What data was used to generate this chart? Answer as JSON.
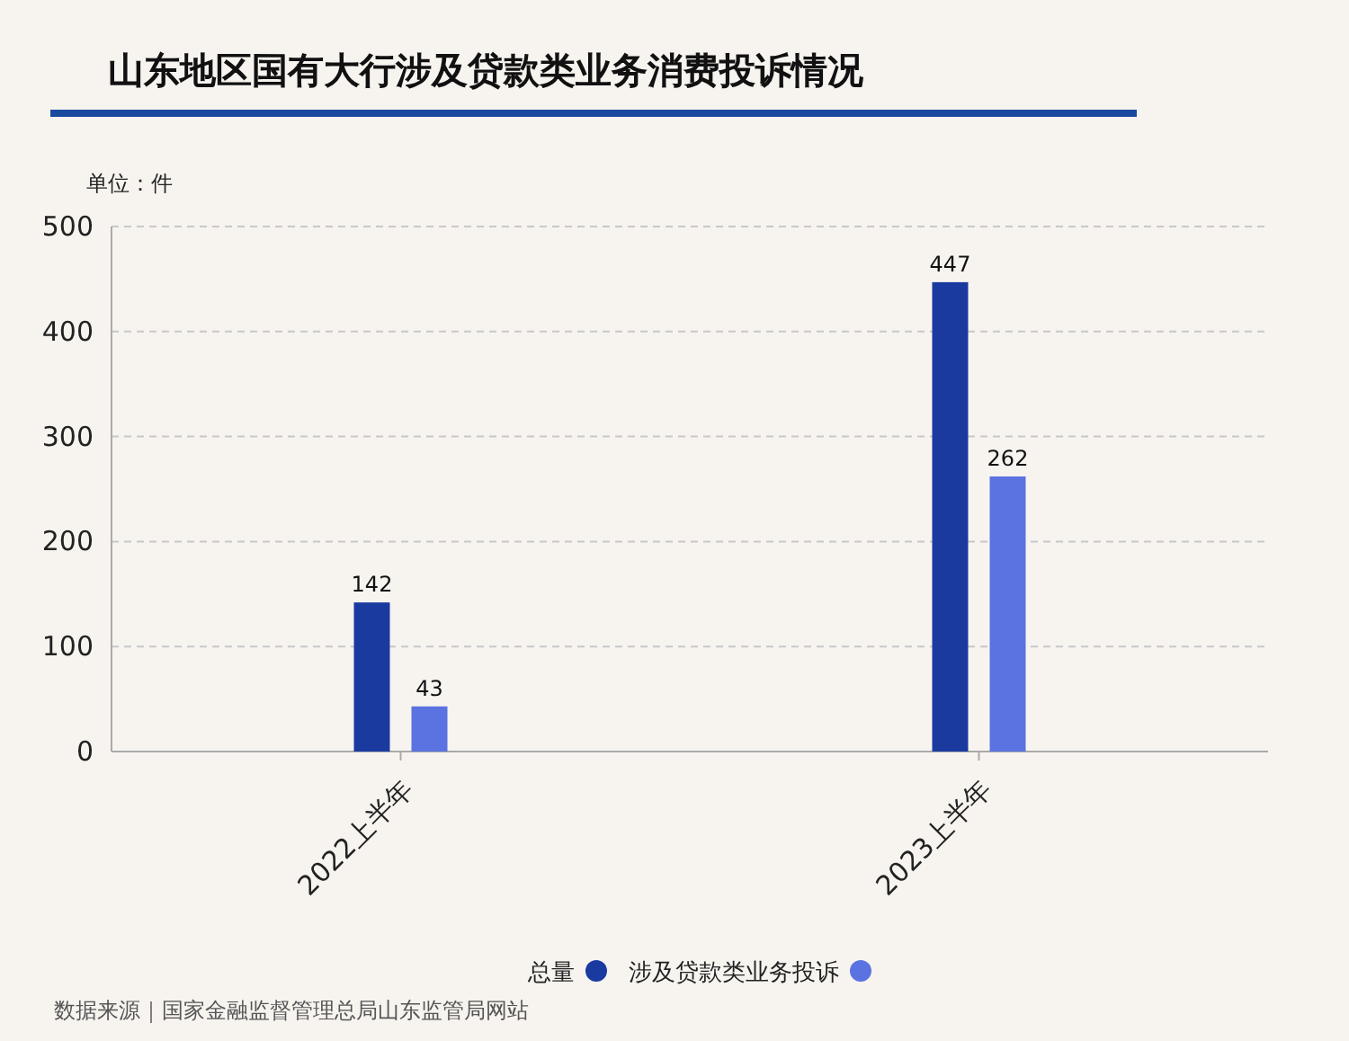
{
  "chart_data": {
    "type": "bar",
    "title": "山东地区国有大行涉及贷款类业务消费投诉情况",
    "ylabel": "单位：件",
    "categories": [
      "2022上半年",
      "2023上半年"
    ],
    "series": [
      {
        "name": "总量",
        "color": "#1a3aa0",
        "values": [
          142,
          447
        ]
      },
      {
        "name": "涉及贷款类业务投诉",
        "color": "#5a73e0",
        "values": [
          43,
          262
        ]
      }
    ],
    "ylim": [
      0,
      500
    ],
    "yticks": [
      0,
      100,
      200,
      300,
      400,
      500
    ],
    "grid": "y",
    "legend": "bottom",
    "data_labels": true,
    "annotations": [
      "数据来源｜国家金融监督管理总局山东监管局网站"
    ]
  }
}
